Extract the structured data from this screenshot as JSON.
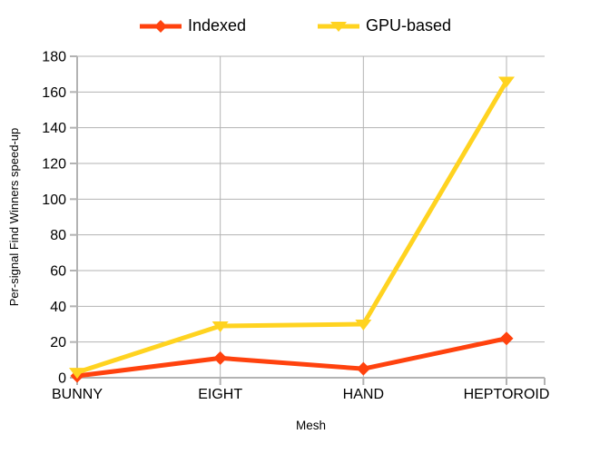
{
  "chart_data": {
    "type": "line",
    "categories": [
      "BUNNY",
      "EIGHT",
      "HAND",
      "HEPTOROID"
    ],
    "series": [
      {
        "name": "Indexed",
        "values": [
          1,
          11,
          5,
          22
        ],
        "color": "#FF420E",
        "marker": "diamond"
      },
      {
        "name": "GPU-based",
        "values": [
          3,
          29,
          30,
          166
        ],
        "color": "#FFD320",
        "marker": "triangle-down"
      }
    ],
    "xlabel": "Mesh",
    "ylabel": "Per-signal Find Winners speed-up",
    "ylim": [
      0,
      180
    ],
    "ytick_step": 20,
    "grid": true,
    "legend_position": "top"
  },
  "colors": {
    "grid": "#B3B3B3",
    "axis": "#B3B3B3",
    "text": "#000000",
    "background": "#FFFFFF"
  }
}
